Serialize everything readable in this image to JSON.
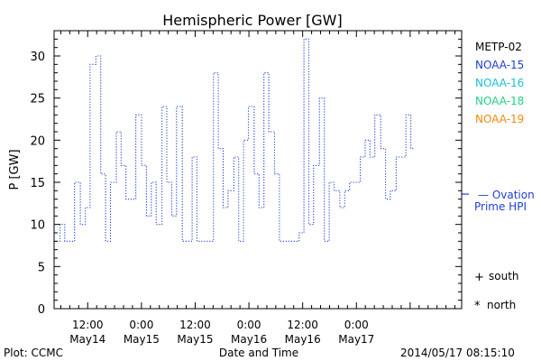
{
  "chart_data": {
    "type": "line",
    "title": "Hemispheric Power [GW]",
    "ylabel": "P [GW]",
    "xlabel": "Date and Time",
    "ylim": [
      0,
      33
    ],
    "yticks": [
      0,
      5,
      10,
      15,
      20,
      25,
      30
    ],
    "xlim": [
      "2014-05-14 04:30",
      "2014-05-17 23:30"
    ],
    "xticks": [
      {
        "t": "2014-05-14 12:00",
        "line1": "12:00",
        "line2": "May14"
      },
      {
        "t": "2014-05-15 00:00",
        "line1": "0:00",
        "line2": "May15"
      },
      {
        "t": "2014-05-15 12:00",
        "line1": "12:00",
        "line2": "May15"
      },
      {
        "t": "2014-05-16 00:00",
        "line1": "0:00",
        "line2": "May16"
      },
      {
        "t": "2014-05-16 12:00",
        "line1": "12:00",
        "line2": "May16"
      },
      {
        "t": "2014-05-17 00:00",
        "line1": "0:00",
        "line2": "May17"
      }
    ],
    "legend": [
      {
        "name": "METP-02",
        "color": "#000000"
      },
      {
        "name": "NOAA-15",
        "color": "#1f3fd0"
      },
      {
        "name": "NOAA-16",
        "color": "#18c0d8"
      },
      {
        "name": "NOAA-18",
        "color": "#20d080"
      },
      {
        "name": "NOAA-19",
        "color": "#f08a10"
      }
    ],
    "series": [
      {
        "name": "NOAA-15",
        "color": "#1f3fd0",
        "points": [
          [
            "2014-05-14 04:30",
            8
          ],
          [
            "2014-05-14 05:48",
            10
          ],
          [
            "2014-05-14 06:53",
            8
          ],
          [
            "2014-05-14 09:04",
            15
          ],
          [
            "2014-05-14 10:22",
            10
          ],
          [
            "2014-05-14 11:27",
            12
          ],
          [
            "2014-05-14 12:32",
            29
          ],
          [
            "2014-05-14 13:50",
            30
          ],
          [
            "2014-05-14 14:55",
            16
          ],
          [
            "2014-05-14 16:00",
            8
          ],
          [
            "2014-05-14 17:05",
            15
          ],
          [
            "2014-05-14 18:23",
            21
          ],
          [
            "2014-05-14 19:28",
            17
          ],
          [
            "2014-05-14 20:33",
            13
          ],
          [
            "2014-05-14 22:44",
            23
          ],
          [
            "2014-05-15 00:02",
            17
          ],
          [
            "2014-05-15 01:07",
            11
          ],
          [
            "2014-05-15 02:12",
            15
          ],
          [
            "2014-05-15 03:17",
            10
          ],
          [
            "2014-05-15 04:35",
            24
          ],
          [
            "2014-05-15 05:40",
            15
          ],
          [
            "2014-05-15 06:45",
            11
          ],
          [
            "2014-05-15 07:50",
            24
          ],
          [
            "2014-05-15 09:08",
            8
          ],
          [
            "2014-05-15 11:19",
            18
          ],
          [
            "2014-05-15 12:24",
            8
          ],
          [
            "2014-05-15 14:47",
            8
          ],
          [
            "2014-05-15 16:05",
            28
          ],
          [
            "2014-05-15 17:10",
            19
          ],
          [
            "2014-05-15 18:15",
            12
          ],
          [
            "2014-05-15 19:20",
            14
          ],
          [
            "2014-05-15 20:38",
            18
          ],
          [
            "2014-05-15 21:43",
            8
          ],
          [
            "2014-05-15 22:48",
            20
          ],
          [
            "2014-05-15 23:53",
            24
          ],
          [
            "2014-05-16 01:11",
            16
          ],
          [
            "2014-05-16 02:16",
            12
          ],
          [
            "2014-05-16 03:21",
            28
          ],
          [
            "2014-05-16 04:26",
            21
          ],
          [
            "2014-05-16 05:44",
            16
          ],
          [
            "2014-05-16 06:49",
            8
          ],
          [
            "2014-05-16 11:12",
            9
          ],
          [
            "2014-05-16 12:17",
            32
          ],
          [
            "2014-05-16 13:22",
            10
          ],
          [
            "2014-05-16 14:27",
            17
          ],
          [
            "2014-05-16 15:45",
            25
          ],
          [
            "2014-05-16 16:50",
            8
          ],
          [
            "2014-05-16 17:55",
            15
          ],
          [
            "2014-05-16 19:00",
            14
          ],
          [
            "2014-05-16 20:18",
            12
          ],
          [
            "2014-05-16 21:23",
            14
          ],
          [
            "2014-05-16 22:28",
            15
          ],
          [
            "2014-05-17 00:52",
            18
          ],
          [
            "2014-05-17 01:57",
            20
          ],
          [
            "2014-05-17 03:02",
            18
          ],
          [
            "2014-05-17 04:07",
            23
          ],
          [
            "2014-05-17 05:25",
            19
          ],
          [
            "2014-05-17 06:30",
            13
          ],
          [
            "2014-05-17 07:35",
            14
          ],
          [
            "2014-05-17 08:53",
            18
          ],
          [
            "2014-05-17 11:04",
            23
          ],
          [
            "2014-05-17 12:09",
            19
          ],
          [
            "2014-05-17 13:00",
            19
          ]
        ]
      }
    ],
    "ovation": {
      "value": 13.6,
      "label_line1": "— Ovation",
      "label_line2": "Prime HPI",
      "color": "#1f3fd0"
    },
    "markers": [
      {
        "symbol": "+",
        "label": "south"
      },
      {
        "symbol": "*",
        "label": "north"
      }
    ]
  },
  "footer": {
    "left": "Plot: CCMC",
    "right": "2014/05/17 08:15:10"
  }
}
